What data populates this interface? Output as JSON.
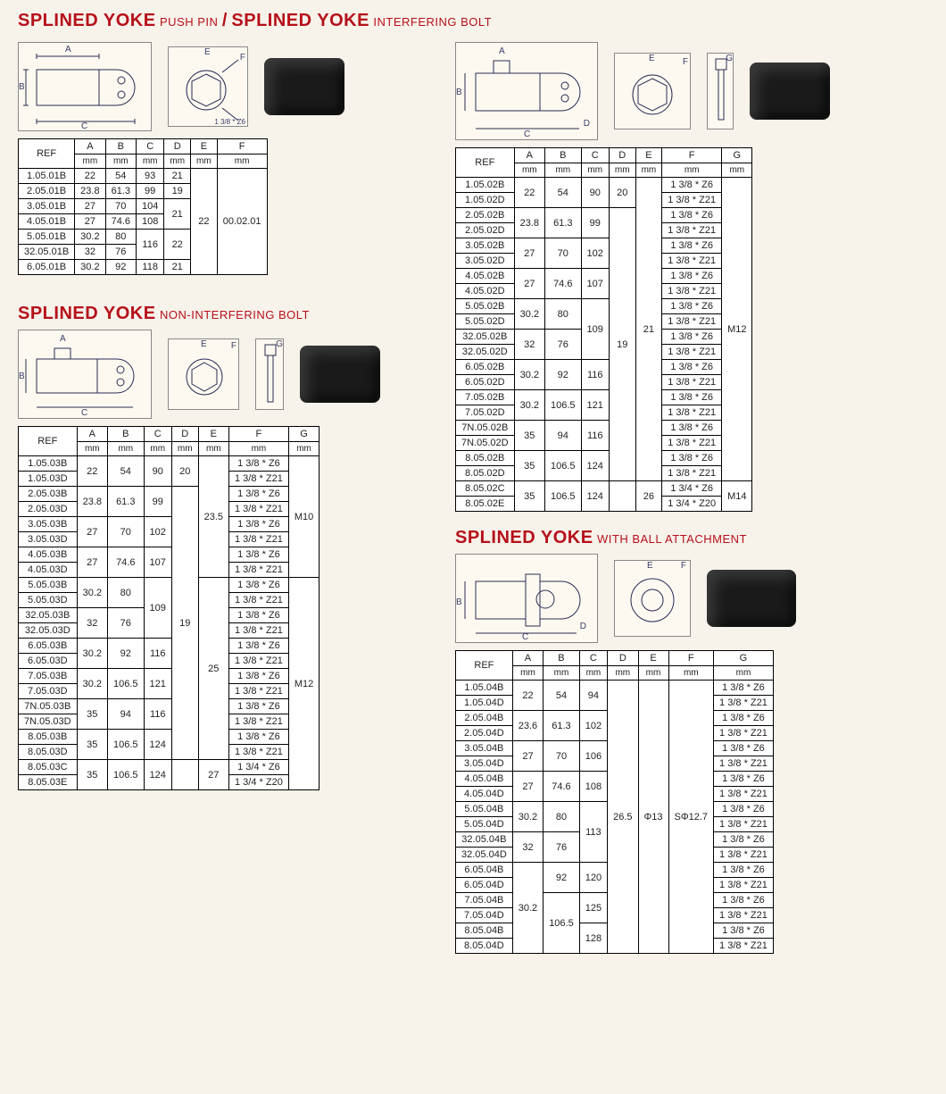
{
  "page": {
    "bg": "#f7f2ea",
    "accent": "#b6101a",
    "border": "#000000"
  },
  "section1": {
    "title_main1": "SPLINED YOKE",
    "title_sub1": "PUSH PIN",
    "slash": "/",
    "title_main2": "SPLINED YOKE",
    "title_sub2": "INTERFERING BOLT",
    "left_table": {
      "columns": [
        "REF",
        "A",
        "B",
        "C",
        "D",
        "E",
        "F"
      ],
      "units": [
        "",
        "mm",
        "mm",
        "mm",
        "mm",
        "mm",
        "mm"
      ],
      "rows": [
        [
          "1.05.01B",
          "22",
          "54",
          "93",
          "21",
          "",
          ""
        ],
        [
          "2.05.01B",
          "23.8",
          "61.3",
          "99",
          "19",
          "",
          ""
        ],
        [
          "3.05.01B",
          "27",
          "70",
          "104",
          "21",
          "",
          ""
        ],
        [
          "4.05.01B",
          "27",
          "74.6",
          "108",
          "",
          "22",
          "00.02.01"
        ],
        [
          "5.05.01B",
          "30.2",
          "80",
          "116",
          "22",
          "",
          ""
        ],
        [
          "32.05.01B",
          "32",
          "76",
          "",
          "",
          "",
          ""
        ],
        [
          "6.05.01B",
          "30.2",
          "92",
          "118",
          "21",
          "",
          ""
        ]
      ],
      "merges": {
        "D_21": {
          "col": "D",
          "startRow": 2,
          "span": 2,
          "value": "21"
        },
        "C_116": {
          "col": "C",
          "startRow": 4,
          "span": 2,
          "value": "116"
        },
        "D_22": {
          "col": "D",
          "startRow": 4,
          "span": 2,
          "value": "22"
        },
        "E_22": {
          "col": "E",
          "startRow": 0,
          "span": 7,
          "value": "22"
        },
        "F_0002": {
          "col": "F",
          "startRow": 0,
          "span": 7,
          "value": "00.02.01"
        }
      }
    },
    "right_table": {
      "columns": [
        "REF",
        "A",
        "B",
        "C",
        "D",
        "E",
        "F",
        "G"
      ],
      "units": [
        "",
        "mm",
        "mm",
        "mm",
        "mm",
        "mm",
        "mm",
        "mm"
      ],
      "refs": [
        "1.05.02B",
        "1.05.02D",
        "2.05.02B",
        "2.05.02D",
        "3.05.02B",
        "3.05.02D",
        "4.05.02B",
        "4.05.02D",
        "5.05.02B",
        "5.05.02D",
        "32.05.02B",
        "32.05.02D",
        "6.05.02B",
        "6.05.02D",
        "7.05.02B",
        "7.05.02D",
        "7N.05.02B",
        "7N.05.02D",
        "8.05.02B",
        "8.05.02D",
        "8.05.02C",
        "8.05.02E"
      ],
      "A": [
        "22",
        "",
        "23.8",
        "",
        "27",
        "",
        "27",
        "",
        "30.2",
        "",
        "32",
        "",
        "30.2",
        "",
        "30.2",
        "",
        "35",
        "",
        "35",
        "",
        "35",
        ""
      ],
      "B": [
        "54",
        "",
        "61.3",
        "",
        "70",
        "",
        "74.6",
        "",
        "80",
        "",
        "76",
        "",
        "92",
        "",
        "106.5",
        "",
        "94",
        "",
        "106.5",
        "",
        "106.5",
        ""
      ],
      "C": [
        "90",
        "",
        "99",
        "",
        "102",
        "",
        "107",
        "",
        "",
        "",
        "109",
        "",
        "116",
        "",
        "121",
        "",
        "116",
        "",
        "124",
        "",
        "124",
        ""
      ],
      "D": [
        "20",
        "",
        "",
        "",
        "",
        "",
        "",
        "",
        "",
        "",
        "19",
        "",
        "",
        "",
        "",
        "",
        "",
        "",
        "",
        "",
        "",
        ""
      ],
      "E": [
        "",
        "",
        "",
        "",
        "",
        "",
        "",
        "",
        "",
        "",
        "21",
        "",
        "",
        "",
        "",
        "",
        "",
        "",
        "",
        "",
        "26",
        ""
      ],
      "F": [
        "1 3/8 * Z6",
        "1 3/8 * Z21",
        "1 3/8 * Z6",
        "1 3/8 * Z21",
        "1 3/8 * Z6",
        "1 3/8 * Z21",
        "1 3/8 * Z6",
        "1 3/8 * Z21",
        "1 3/8 * Z6",
        "1 3/8 * Z21",
        "1 3/8 * Z6",
        "1 3/8 * Z21",
        "1 3/8 * Z6",
        "1 3/8 * Z21",
        "1 3/8 * Z6",
        "1 3/8 * Z21",
        "1 3/8 * Z6",
        "1 3/8 * Z21",
        "1 3/8 * Z6",
        "1 3/8 * Z21",
        "1 3/4 * Z6",
        "1 3/4 * Z20"
      ],
      "G_top": "M12",
      "G_bot": "M14"
    }
  },
  "section2": {
    "title_main": "SPLINED YOKE",
    "title_sub": "NON-INTERFERING BOLT",
    "columns": [
      "REF",
      "A",
      "B",
      "C",
      "D",
      "E",
      "F",
      "G"
    ],
    "units": [
      "",
      "mm",
      "mm",
      "mm",
      "mm",
      "mm",
      "mm",
      "mm"
    ],
    "refs": [
      "1.05.03B",
      "1.05.03D",
      "2.05.03B",
      "2.05.03D",
      "3.05.03B",
      "3.05.03D",
      "4.05.03B",
      "4.05.03D",
      "5.05.03B",
      "5.05.03D",
      "32.05.03B",
      "32.05.03D",
      "6.05.03B",
      "6.05.03D",
      "7.05.03B",
      "7.05.03D",
      "7N.05.03B",
      "7N.05.03D",
      "8.05.03B",
      "8.05.03D",
      "8.05.03C",
      "8.05.03E"
    ],
    "A": [
      "22",
      "",
      "23.8",
      "",
      "27",
      "",
      "27",
      "",
      "30.2",
      "",
      "32",
      "",
      "30.2",
      "",
      "30.2",
      "",
      "35",
      "",
      "35",
      "",
      "35",
      ""
    ],
    "B": [
      "54",
      "",
      "61.3",
      "",
      "70",
      "",
      "74.6",
      "",
      "80",
      "",
      "76",
      "",
      "92",
      "",
      "106.5",
      "",
      "94",
      "",
      "106.5",
      "",
      "106.5",
      ""
    ],
    "C": [
      "90",
      "",
      "99",
      "",
      "102",
      "",
      "107",
      "",
      "",
      "",
      "109",
      "",
      "116",
      "",
      "121",
      "",
      "116",
      "",
      "124",
      "",
      "124",
      ""
    ],
    "D": [
      "20",
      "",
      "",
      "",
      "",
      "",
      "",
      "",
      "",
      "",
      "19",
      "",
      "",
      "",
      "",
      "",
      "",
      "",
      "",
      "",
      "",
      ""
    ],
    "E_235": "23.5",
    "E_25": "25",
    "E_27": "27",
    "F": [
      "1 3/8 * Z6",
      "1 3/8 * Z21",
      "1 3/8 * Z6",
      "1 3/8 * Z21",
      "1 3/8 * Z6",
      "1 3/8 * Z21",
      "1 3/8 * Z6",
      "1 3/8 * Z21",
      "1 3/8 * Z6",
      "1 3/8 * Z21",
      "1 3/8 * Z6",
      "1 3/8 * Z21",
      "1 3/8 * Z6",
      "1 3/8 * Z21",
      "1 3/8 * Z6",
      "1 3/8 * Z21",
      "1 3/8 * Z6",
      "1 3/8 * Z21",
      "1 3/8 * Z6",
      "1 3/8 * Z21",
      "1 3/4 * Z6",
      "1 3/4 * Z20"
    ],
    "G_M10": "M10",
    "G_M12": "M12"
  },
  "section3": {
    "title_main": "SPLINED YOKE",
    "title_sub": "WITH BALL ATTACHMENT",
    "columns": [
      "REF",
      "A",
      "B",
      "C",
      "D",
      "E",
      "F",
      "G"
    ],
    "units": [
      "",
      "mm",
      "mm",
      "mm",
      "mm",
      "mm",
      "mm",
      "mm"
    ],
    "refs": [
      "1.05.04B",
      "1.05.04D",
      "2.05.04B",
      "2.05.04D",
      "3.05.04B",
      "3.05.04D",
      "4.05.04B",
      "4.05.04D",
      "5.05.04B",
      "5.05.04D",
      "32.05.04B",
      "32.05.04D",
      "6.05.04B",
      "6.05.04D",
      "7.05.04B",
      "7.05.04D",
      "8.05.04B",
      "8.05.04D"
    ],
    "A": [
      "22",
      "",
      "23.6",
      "",
      "27",
      "",
      "27",
      "",
      "30.2",
      "",
      "32",
      "",
      "",
      "",
      "30.2",
      "",
      "",
      ""
    ],
    "B": [
      "54",
      "",
      "61.3",
      "",
      "70",
      "",
      "74.6",
      "",
      "80",
      "",
      "76",
      "",
      "92",
      "",
      "",
      "",
      "106.5",
      ""
    ],
    "C": [
      "94",
      "",
      "102",
      "",
      "106",
      "",
      "108",
      "",
      "",
      "",
      "113",
      "",
      "120",
      "",
      "125",
      "",
      "128",
      ""
    ],
    "D_val": "26.5",
    "E_val": "Φ13",
    "F_val": "SΦ12.7",
    "G": [
      "1 3/8 * Z6",
      "1 3/8 * Z21",
      "1 3/8 * Z6",
      "1 3/8 * Z21",
      "1 3/8 * Z6",
      "1 3/8 * Z21",
      "1 3/8 * Z6",
      "1 3/8 * Z21",
      "1 3/8 * Z6",
      "1 3/8 * Z21",
      "1 3/8 * Z6",
      "1 3/8 * Z21",
      "1 3/8 * Z6",
      "1 3/8 * Z21",
      "1 3/8 * Z6",
      "1 3/8 * Z21",
      "1 3/8 * Z6",
      "1 3/8 * Z21"
    ]
  },
  "diagram_labels": {
    "A": "A",
    "B": "B",
    "C": "C",
    "D": "D",
    "E": "E",
    "F": "F",
    "G": "G",
    "spline": "1 3/8 * Z6"
  }
}
